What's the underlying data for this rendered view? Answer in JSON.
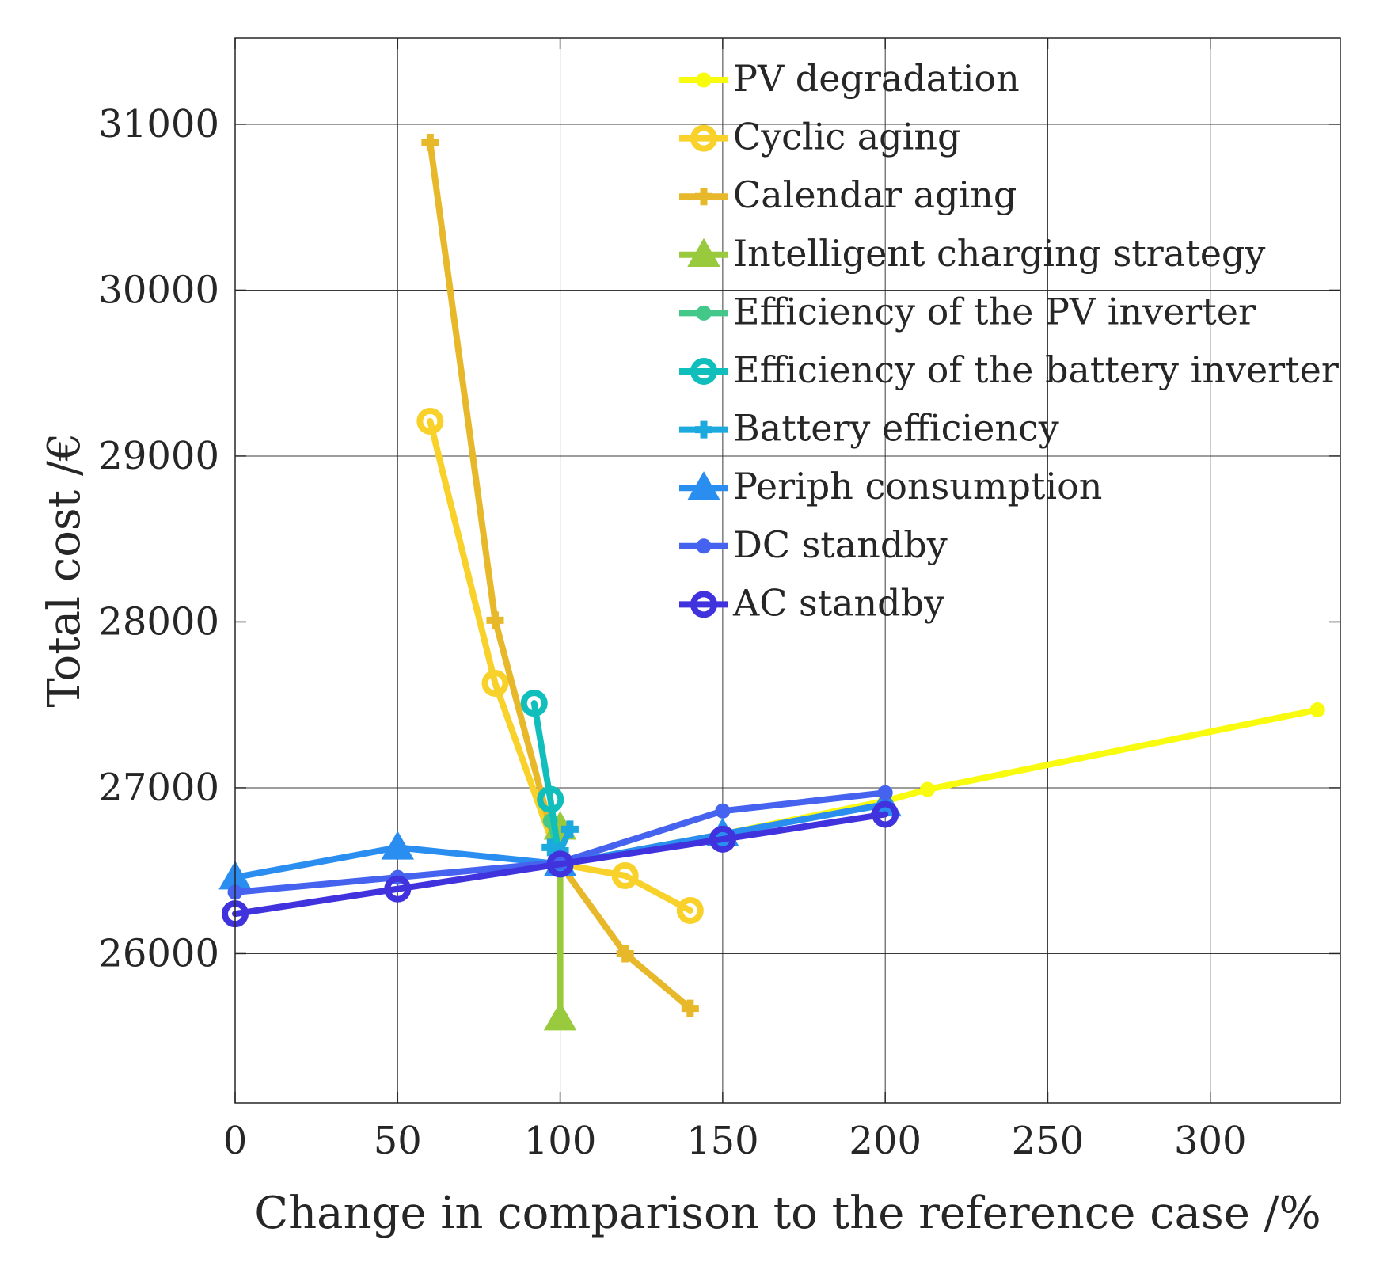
{
  "chart_data": {
    "type": "line",
    "title": "",
    "xlabel": "Change in comparison to the reference case /%",
    "ylabel": "Total cost /€",
    "xlim": [
      0,
      340
    ],
    "ylim": [
      25100,
      31520
    ],
    "xticks": [
      0,
      50,
      100,
      150,
      200,
      250,
      300
    ],
    "yticks": [
      26000,
      27000,
      28000,
      29000,
      30000,
      31000
    ],
    "xtick_labels": [
      "0",
      "50",
      "100",
      "150",
      "200",
      "250",
      "300"
    ],
    "ytick_labels": [
      "26000",
      "27000",
      "28000",
      "29000",
      "30000",
      "31000"
    ],
    "grid": true,
    "legend_position": "top-right",
    "series": [
      {
        "name": "PV degradation",
        "color": "#f9fb0e",
        "marker": "point",
        "x": [
          100,
          150,
          200,
          213,
          333
        ],
        "y": [
          26540,
          26720,
          26920,
          26990,
          27470
        ]
      },
      {
        "name": "Cyclic aging",
        "color": "#f9d12b",
        "marker": "circle",
        "x": [
          60,
          80,
          100,
          120,
          140
        ],
        "y": [
          29210,
          27630,
          26540,
          26470,
          26260
        ]
      },
      {
        "name": "Calendar aging",
        "color": "#e7b829",
        "marker": "plus",
        "x": [
          60,
          80,
          100,
          120,
          140
        ],
        "y": [
          30890,
          28010,
          26540,
          26000,
          25670
        ]
      },
      {
        "name": "Intelligent charging strategy",
        "color": "#99c93d",
        "marker": "triangle",
        "x": [
          100,
          100
        ],
        "y": [
          26760,
          25610
        ]
      },
      {
        "name": "Efficiency of the PV inverter",
        "color": "#44c88a",
        "marker": "point",
        "x": [
          97,
          100
        ],
        "y": [
          26800,
          26540
        ]
      },
      {
        "name": "Efficiency of the battery inverter",
        "color": "#10bebc",
        "marker": "circle",
        "x": [
          92,
          97,
          100
        ],
        "y": [
          27510,
          26930,
          26540
        ]
      },
      {
        "name": "Battery efficiency",
        "color": "#1ba9de",
        "marker": "plus",
        "x": [
          97,
          100,
          103
        ],
        "y": [
          26640,
          26620,
          26750
        ]
      },
      {
        "name": "Periph consumption",
        "color": "#2a8ef0",
        "marker": "triangle",
        "x": [
          0,
          50,
          100,
          150,
          200
        ],
        "y": [
          26460,
          26640,
          26540,
          26720,
          26900
        ]
      },
      {
        "name": "DC standby",
        "color": "#4563ef",
        "marker": "point",
        "x": [
          0,
          50,
          100,
          150,
          200
        ],
        "y": [
          26370,
          26460,
          26550,
          26860,
          26970
        ]
      },
      {
        "name": "AC standby",
        "color": "#4032dc",
        "marker": "circle",
        "x": [
          0,
          50,
          100,
          150,
          200
        ],
        "y": [
          26240,
          26390,
          26540,
          26690,
          26840
        ]
      }
    ]
  }
}
